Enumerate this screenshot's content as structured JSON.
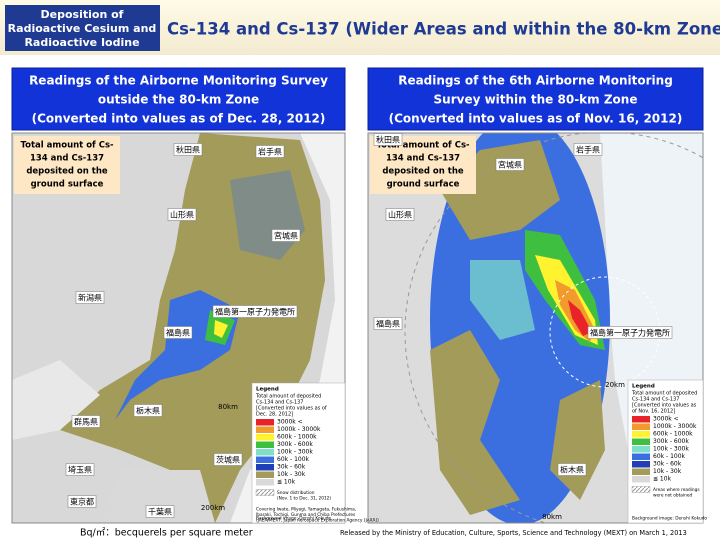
{
  "header": {
    "tag": [
      "Deposition of",
      "Radioactive Cesium and",
      "Radioactive Iodine"
    ],
    "title": "Cs-134 and Cs-137 (Wider Areas and within the 80-km Zone)"
  },
  "panels": [
    {
      "heading": [
        "Readings of the Airborne Monitoring Survey",
        "outside the 80-km Zone",
        "(Converted into values as of Dec. 28, 2012)"
      ],
      "label": [
        "Total amount of Cs-",
        "134 and Cs-137",
        "deposited on the",
        "ground surface"
      ],
      "legend": {
        "title": "Legend",
        "subtitle": [
          "Total amount of deposited",
          "Cs-134 and Cs-137",
          "[Converted into values as of",
          "Dec. 28, 2012]"
        ],
        "items": [
          {
            "label": "3000k <",
            "color": "#e8242a"
          },
          {
            "label": "1000k - 3000k",
            "color": "#f39a2c"
          },
          {
            "label": "600k - 1000k",
            "color": "#fff22e"
          },
          {
            "label": "300k - 600k",
            "color": "#3fbf3f"
          },
          {
            "label": "100k - 300k",
            "color": "#7fe0c8"
          },
          {
            "label": "60k - 100k",
            "color": "#3b6fe0"
          },
          {
            "label": "30k - 60k",
            "color": "#1e3fb8"
          },
          {
            "label": "10k - 30k",
            "color": "#a39b5a"
          },
          {
            "label": "≦ 10k",
            "color": "#d9d9d9"
          }
        ],
        "notes": [
          "Snow distribution",
          "(Nov. 1 to Dec. 31, 2012)",
          "Covering Iwate, Miyagi, Yamagata, Fukushima,",
          "Ibaraki, Tochigi, Gunma and Chiba Prefectures",
          "(JAEA/MEXT, Japan Aerospace Exploration Agency (JAXA))",
          "Background image: Denshi Kokudo"
        ]
      },
      "places": [
        "秋田県",
        "岩手県",
        "山形県",
        "宮城県",
        "新潟県",
        "福島県",
        "福島第一原子力発電所",
        "栃木県",
        "群馬県",
        "茨城県",
        "埼玉県",
        "東京都",
        "千葉県"
      ],
      "distances": [
        "80km",
        "200km"
      ]
    },
    {
      "heading": [
        "Readings of the 6th Airborne Monitoring",
        "Survey within the 80-km Zone",
        "(Converted into values as of Nov. 16, 2012)"
      ],
      "label": [
        "Total amount of Cs-",
        "134 and Cs-137",
        "deposited on the",
        "ground surface"
      ],
      "legend": {
        "title": "Legend",
        "subtitle": [
          "Total amount of deposited",
          "Cs-134 and Cs-137",
          "[Converted into values as",
          "of Nov. 16, 2012]"
        ],
        "items": [
          {
            "label": "3000k <",
            "color": "#e8242a"
          },
          {
            "label": "1000k - 3000k",
            "color": "#f39a2c"
          },
          {
            "label": "600k - 1000k",
            "color": "#fff22e"
          },
          {
            "label": "300k - 600k",
            "color": "#3fbf3f"
          },
          {
            "label": "100k - 300k",
            "color": "#7fe0c8"
          },
          {
            "label": "60k - 100k",
            "color": "#3b6fe0"
          },
          {
            "label": "30k - 60k",
            "color": "#1e3fb8"
          },
          {
            "label": "10k - 30k",
            "color": "#a39b5a"
          },
          {
            "label": "≦ 10k",
            "color": "#d9d9d9"
          }
        ],
        "notes": [
          "Areas where readings",
          "were not obtained",
          "Background image: Denshi Kokudo"
        ]
      },
      "places": [
        "秋田県",
        "岩手県",
        "宮城県",
        "山形県",
        "福島県",
        "福島第一原子力発電所",
        "栃木県"
      ],
      "distances": [
        "20km",
        "80km"
      ]
    }
  ],
  "footer": {
    "units": "Bq/㎡：becquerels per square meter",
    "release": "Released by the Ministry of Education, Culture, Sports, Science and Technology (MEXT) on March 1, 2013"
  }
}
